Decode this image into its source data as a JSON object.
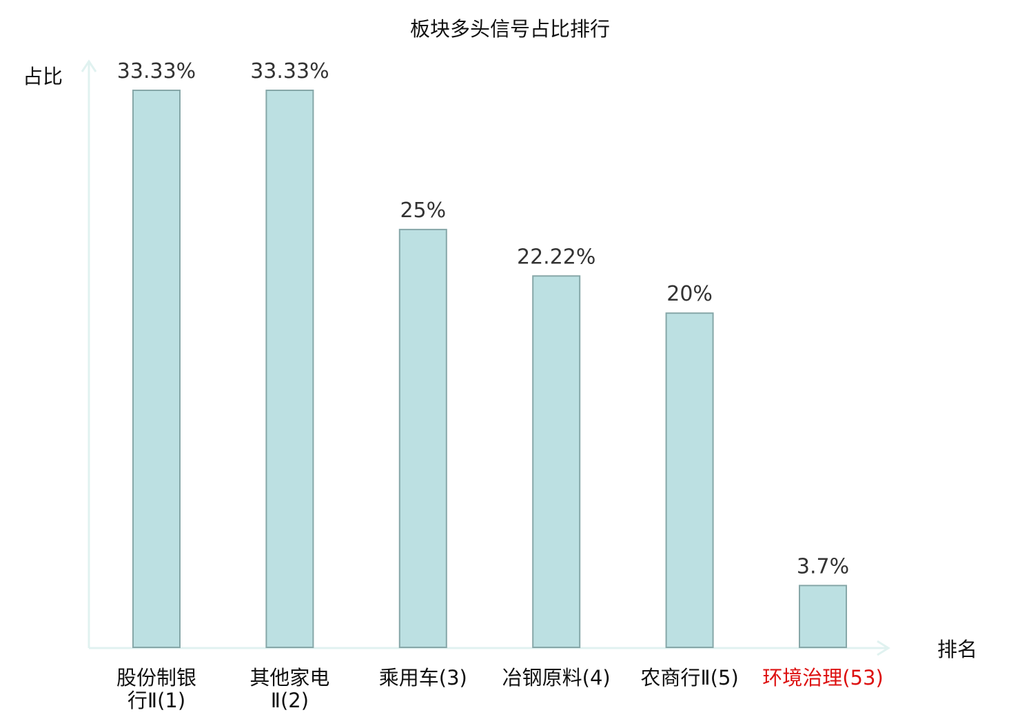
{
  "chart_data": {
    "type": "bar",
    "title": "板块多头信号占比排行",
    "xlabel": "排名",
    "ylabel": "占比",
    "categories": [
      [
        "股份制银",
        "行Ⅱ(1)"
      ],
      [
        "其他家电",
        "Ⅱ(2)"
      ],
      [
        "乘用车(3)"
      ],
      [
        "冶钢原料(4)"
      ],
      [
        "农商行Ⅱ(5)"
      ],
      [
        "环境治理(53)"
      ]
    ],
    "values": [
      33.33,
      33.33,
      25,
      22.22,
      20,
      3.7
    ],
    "value_labels": [
      "33.33%",
      "33.33%",
      "25%",
      "22.22%",
      "20%",
      "3.7%"
    ],
    "highlight_index": 5,
    "ylim": [
      0,
      33.33
    ],
    "grid": false,
    "legend": "none"
  },
  "colors": {
    "bar_fill": "#bce0e2",
    "bar_stroke": "#86a7a8",
    "axis": "#e0f2f0",
    "text": "#111111",
    "value_text": "#333333",
    "highlight": "#dd1111"
  }
}
